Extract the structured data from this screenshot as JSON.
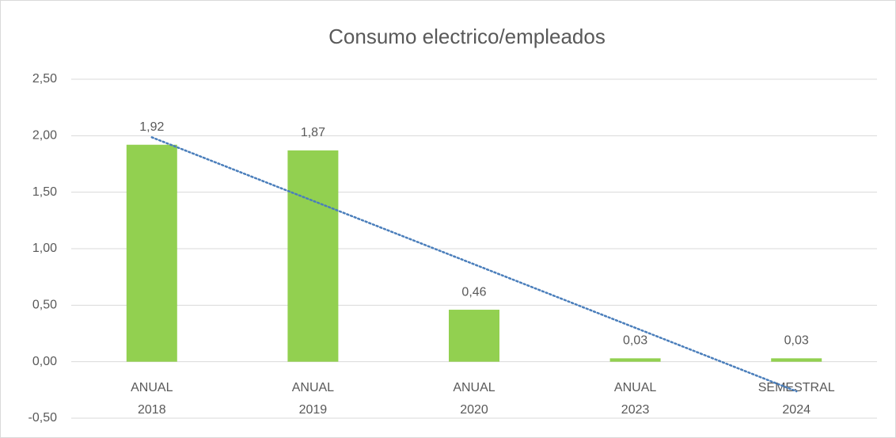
{
  "chart_data": {
    "type": "bar",
    "title": "Consumo electrico/empleados",
    "categories": [
      [
        "ANUAL",
        "2018"
      ],
      [
        "ANUAL",
        "2019"
      ],
      [
        "ANUAL",
        "2020"
      ],
      [
        "ANUAL",
        "2023"
      ],
      [
        "SEMESTRAL",
        "2024"
      ]
    ],
    "values": [
      1.92,
      1.87,
      0.46,
      0.03,
      0.03
    ],
    "value_labels": [
      "1,92",
      "1,87",
      "0,46",
      "0,03",
      "0,03"
    ],
    "color": "#92d050",
    "ylim": [
      -0.5,
      2.5
    ],
    "yticks": [
      {
        "value": -0.5,
        "label": "-0,50"
      },
      {
        "value": 0,
        "label": "0,00"
      },
      {
        "value": 0.5,
        "label": "0,50"
      },
      {
        "value": 1,
        "label": "1,00"
      },
      {
        "value": 1.5,
        "label": "1,50"
      },
      {
        "value": 2,
        "label": "2,00"
      },
      {
        "value": 2.5,
        "label": "2,50"
      }
    ],
    "grid": true,
    "trendline": "linear",
    "trendline_color": "#4a7ebb"
  }
}
